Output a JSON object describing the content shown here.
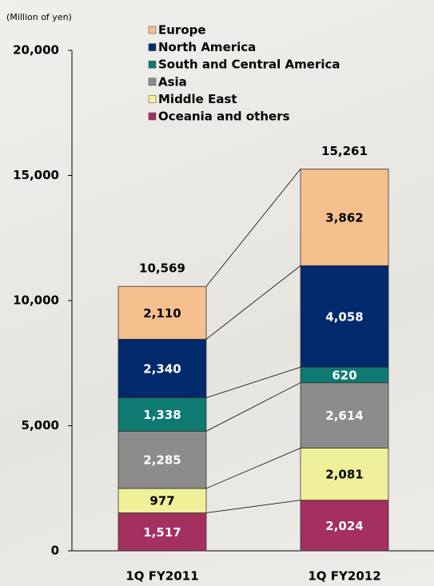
{
  "chart_data": {
    "type": "stacked-bar",
    "unit_label": "(Million of yen)",
    "categories": [
      "1Q FY2011",
      "1Q FY2012"
    ],
    "series": [
      {
        "name": "Oceania and others",
        "color": "#a3305f",
        "values": [
          1517,
          2024
        ],
        "value_labels": [
          "1,517",
          "2,024"
        ]
      },
      {
        "name": "Middle East",
        "color": "#f0f09a",
        "values": [
          977,
          2081
        ],
        "value_labels": [
          "977",
          "2,081"
        ]
      },
      {
        "name": "Asia",
        "color": "#8c8c8c",
        "values": [
          2285,
          2614
        ],
        "value_labels": [
          "2,285",
          "2,614"
        ]
      },
      {
        "name": "South and Central America",
        "color": "#0f7a72",
        "values": [
          1338,
          620
        ],
        "value_labels": [
          "1,338",
          "620"
        ]
      },
      {
        "name": "North America",
        "color": "#002a6b",
        "values": [
          2340,
          4058
        ],
        "value_labels": [
          "2,340",
          "4,058"
        ]
      },
      {
        "name": "Europe",
        "color": "#f6c08e",
        "values": [
          2110,
          3862
        ],
        "value_labels": [
          "2,110",
          "3,862"
        ]
      }
    ],
    "totals": [
      10569,
      15261
    ],
    "total_labels": [
      "10,569",
      "15,261"
    ],
    "ylim": [
      0,
      20000
    ],
    "yticks": [
      0,
      {
        "value": 5000,
        "label": "5,000"
      },
      {
        "value": 10000,
        "label": "10,000"
      },
      {
        "value": 15000,
        "label": "15,000"
      },
      {
        "value": 20000,
        "label": "20,000"
      }
    ],
    "legend": "top"
  }
}
